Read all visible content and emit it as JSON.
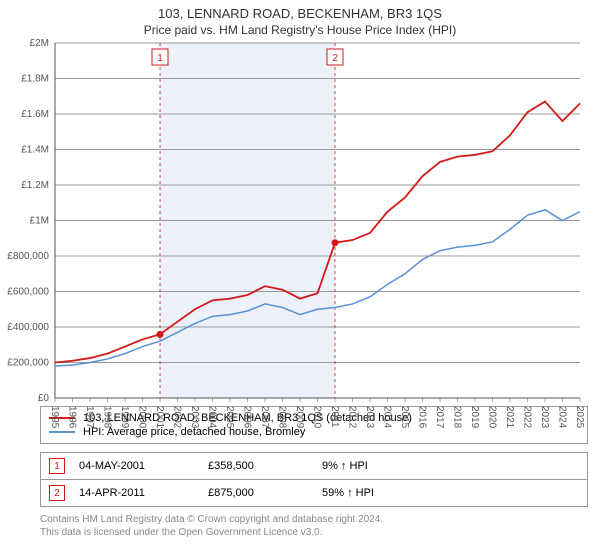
{
  "title_line1": "103, LENNARD ROAD, BECKENHAM, BR3 1QS",
  "title_line2": "Price paid vs. HM Land Registry's House Price Index (HPI)",
  "chart": {
    "type": "line",
    "background_color": "#ffffff",
    "shaded_band_color": "#edf2fa",
    "grid_color": "#e0e0e0",
    "axis_color": "#555555",
    "x_axis": {
      "years": [
        1995,
        1996,
        1997,
        1998,
        1999,
        2000,
        2001,
        2002,
        2003,
        2004,
        2005,
        2006,
        2007,
        2008,
        2009,
        2010,
        2011,
        2012,
        2013,
        2014,
        2015,
        2016,
        2017,
        2018,
        2019,
        2020,
        2021,
        2022,
        2023,
        2024,
        2025
      ],
      "label_fontsize": 10
    },
    "y_axis": {
      "ticks": [
        0,
        200000,
        400000,
        600000,
        800000,
        1000000,
        1200000,
        1400000,
        1600000,
        1800000,
        2000000
      ],
      "tick_labels": [
        "£0",
        "£200,000",
        "£400,000",
        "£600,000",
        "£800,000",
        "£1M",
        "£1.2M",
        "£1.4M",
        "£1.6M",
        "£1.8M",
        "£2M"
      ],
      "ylim": [
        0,
        2000000
      ],
      "label_fontsize": 10
    },
    "shaded_band": {
      "x_start": 2001,
      "x_end": 2011
    },
    "series": [
      {
        "name": "103, LENNARD ROAD, BECKENHAM, BR3 1QS (detached house)",
        "color": "#d21919",
        "line_width": 1.8,
        "data": [
          [
            1995,
            200000
          ],
          [
            1996,
            210000
          ],
          [
            1997,
            225000
          ],
          [
            1998,
            250000
          ],
          [
            1999,
            290000
          ],
          [
            2000,
            330000
          ],
          [
            2001,
            358500
          ],
          [
            2002,
            430000
          ],
          [
            2003,
            500000
          ],
          [
            2004,
            550000
          ],
          [
            2005,
            560000
          ],
          [
            2006,
            580000
          ],
          [
            2007,
            630000
          ],
          [
            2008,
            610000
          ],
          [
            2009,
            560000
          ],
          [
            2010,
            590000
          ],
          [
            2011,
            875000
          ],
          [
            2012,
            890000
          ],
          [
            2013,
            930000
          ],
          [
            2014,
            1050000
          ],
          [
            2015,
            1130000
          ],
          [
            2016,
            1250000
          ],
          [
            2017,
            1330000
          ],
          [
            2018,
            1360000
          ],
          [
            2019,
            1370000
          ],
          [
            2020,
            1390000
          ],
          [
            2021,
            1480000
          ],
          [
            2022,
            1610000
          ],
          [
            2023,
            1670000
          ],
          [
            2024,
            1560000
          ],
          [
            2025,
            1660000
          ]
        ]
      },
      {
        "name": "HPI: Average price, detached house, Bromley",
        "color": "#5b8fd6",
        "line_width": 1.5,
        "data": [
          [
            1995,
            180000
          ],
          [
            1996,
            185000
          ],
          [
            1997,
            200000
          ],
          [
            1998,
            220000
          ],
          [
            1999,
            250000
          ],
          [
            2000,
            290000
          ],
          [
            2001,
            320000
          ],
          [
            2002,
            370000
          ],
          [
            2003,
            420000
          ],
          [
            2004,
            460000
          ],
          [
            2005,
            470000
          ],
          [
            2006,
            490000
          ],
          [
            2007,
            530000
          ],
          [
            2008,
            510000
          ],
          [
            2009,
            470000
          ],
          [
            2010,
            500000
          ],
          [
            2011,
            510000
          ],
          [
            2012,
            530000
          ],
          [
            2013,
            570000
          ],
          [
            2014,
            640000
          ],
          [
            2015,
            700000
          ],
          [
            2016,
            780000
          ],
          [
            2017,
            830000
          ],
          [
            2018,
            850000
          ],
          [
            2019,
            860000
          ],
          [
            2020,
            880000
          ],
          [
            2021,
            950000
          ],
          [
            2022,
            1030000
          ],
          [
            2023,
            1060000
          ],
          [
            2024,
            1000000
          ],
          [
            2025,
            1050000
          ]
        ]
      }
    ],
    "markers": [
      {
        "label": "1",
        "year": 2001,
        "value": 358500,
        "marker_color": "#d21919",
        "line_color": "#d21919"
      },
      {
        "label": "2",
        "year": 2011,
        "value": 875000,
        "marker_color": "#d21919",
        "line_color": "#d21919"
      }
    ]
  },
  "legend": {
    "items": [
      {
        "color": "#d21919",
        "label": "103, LENNARD ROAD, BECKENHAM, BR3 1QS (detached house)"
      },
      {
        "color": "#5b8fd6",
        "label": "HPI: Average price, detached house, Bromley"
      }
    ]
  },
  "transactions": [
    {
      "num": "1",
      "date": "04-MAY-2001",
      "price": "£358,500",
      "pct": "9% ↑ HPI"
    },
    {
      "num": "2",
      "date": "14-APR-2011",
      "price": "£875,000",
      "pct": "59% ↑ HPI"
    }
  ],
  "footer": {
    "line1": "Contains HM Land Registry data © Crown copyright and database right 2024.",
    "line2": "This data is licensed under the Open Government Licence v3.0."
  }
}
